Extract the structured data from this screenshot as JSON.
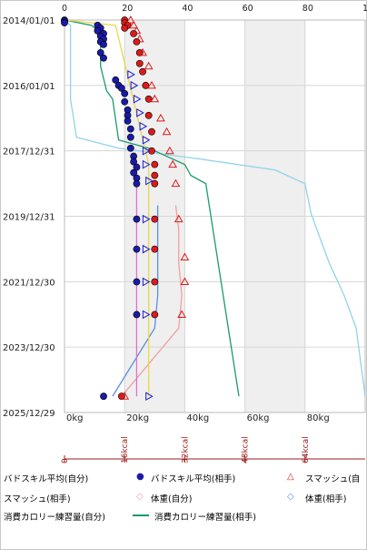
{
  "chart_data": {
    "type": "scatter",
    "grid": true,
    "y_axis": {
      "type": "date",
      "ticks": [
        "2014/01/01",
        "2016/01/01",
        "2017/12/31",
        "2019/12/31",
        "2021/12/30",
        "2023/12/30",
        "2025/12/29"
      ],
      "range": [
        "2014/01/01",
        "2025/12/29"
      ]
    },
    "x_axis_top": {
      "ticks": [
        "0",
        "20",
        "40",
        "60",
        "80",
        "10"
      ],
      "range": [
        0,
        100
      ]
    },
    "x_axis_kg": {
      "ticks": [
        "0kg",
        "20kg",
        "40kg",
        "60kg",
        "80kg"
      ],
      "range": [
        0,
        100
      ]
    },
    "x_axis_kcal": {
      "ticks": [
        "0",
        "16kcal",
        "32kcal",
        "48kcal",
        "64kcal"
      ]
    },
    "shaded_bands": [
      [
        20,
        40
      ],
      [
        60,
        80
      ]
    ],
    "series": [
      {
        "name": "バドスキル平均(自分)",
        "color": "#1a1aa8",
        "marker": "circle",
        "points": [
          [
            "2014/01/01",
            0
          ],
          [
            "2014/01/15",
            0
          ],
          [
            "2014/02/01",
            0
          ],
          [
            "2014/03/01",
            11
          ],
          [
            "2014/04/01",
            12
          ],
          [
            "2014/05/01",
            11
          ],
          [
            "2014/06/01",
            13
          ],
          [
            "2014/07/01",
            12
          ],
          [
            "2014/08/01",
            13
          ],
          [
            "2014/09/01",
            12
          ],
          [
            "2014/10/01",
            13
          ],
          [
            "2015/01/01",
            12
          ],
          [
            "2015/03/01",
            13
          ],
          [
            "2015/11/01",
            17
          ],
          [
            "2016/01/01",
            18
          ],
          [
            "2016/02/01",
            19
          ],
          [
            "2016/04/01",
            20
          ],
          [
            "2016/07/01",
            20
          ],
          [
            "2016/10/01",
            21
          ],
          [
            "2016/12/01",
            21
          ],
          [
            "2017/02/01",
            21
          ],
          [
            "2017/05/01",
            22
          ],
          [
            "2017/08/01",
            22
          ],
          [
            "2017/12/01",
            22
          ],
          [
            "2018/03/01",
            23
          ],
          [
            "2018/05/01",
            23
          ],
          [
            "2018/07/01",
            24
          ],
          [
            "2018/09/01",
            23
          ],
          [
            "2018/11/01",
            24
          ],
          [
            "2019/01/01",
            24
          ],
          [
            "2020/02/01",
            24
          ],
          [
            "2021/01/01",
            24
          ],
          [
            "2022/01/01",
            24
          ],
          [
            "2023/01/01",
            24
          ],
          [
            "2025/07/01",
            13
          ]
        ]
      },
      {
        "name": "バドスキル平均(相手)",
        "color": "#dd1a1a",
        "marker": "circle",
        "points": [
          [
            "2014/01/01",
            20
          ],
          [
            "2014/02/01",
            20
          ],
          [
            "2014/03/01",
            21
          ],
          [
            "2014/04/01",
            20
          ],
          [
            "2014/06/01",
            23
          ],
          [
            "2014/09/01",
            24
          ],
          [
            "2015/01/01",
            25
          ],
          [
            "2015/05/01",
            25
          ],
          [
            "2015/08/01",
            26
          ],
          [
            "2016/01/01",
            27
          ],
          [
            "2016/06/01",
            28
          ],
          [
            "2016/12/01",
            28
          ],
          [
            "2017/06/01",
            29
          ],
          [
            "2018/01/01",
            29
          ],
          [
            "2018/06/01",
            30
          ],
          [
            "2018/10/01",
            30
          ],
          [
            "2019/01/01",
            30
          ],
          [
            "2020/02/01",
            30
          ],
          [
            "2021/01/01",
            30
          ],
          [
            "2022/01/01",
            30
          ],
          [
            "2023/01/01",
            30
          ],
          [
            "2025/07/01",
            19
          ]
        ]
      },
      {
        "name": "スマッシュ(自分)",
        "color": "#dd1a1a",
        "marker": "triangle",
        "points": [
          [
            "2014/01/01",
            22
          ],
          [
            "2014/03/01",
            23
          ],
          [
            "2014/05/01",
            24
          ],
          [
            "2014/08/01",
            25
          ],
          [
            "2015/01/01",
            26
          ],
          [
            "2015/06/01",
            28
          ],
          [
            "2016/01/01",
            29
          ],
          [
            "2016/06/01",
            30
          ],
          [
            "2017/01/01",
            32
          ],
          [
            "2017/06/01",
            34
          ],
          [
            "2018/01/01",
            35
          ],
          [
            "2018/06/01",
            36
          ],
          [
            "2019/01/01",
            37
          ],
          [
            "2020/02/01",
            38
          ],
          [
            "2021/04/01",
            40
          ],
          [
            "2022/01/01",
            40
          ],
          [
            "2023/01/01",
            39
          ],
          [
            "2025/07/01",
            20
          ]
        ]
      },
      {
        "name": "スマッシュ(相手)",
        "color": "#1a1ad8",
        "marker": "triangle-right",
        "points": [
          [
            "2015/09/01",
            22
          ],
          [
            "2016/01/01",
            23
          ],
          [
            "2016/06/01",
            24
          ],
          [
            "2016/11/01",
            25
          ],
          [
            "2017/04/01",
            26
          ],
          [
            "2017/09/01",
            27
          ],
          [
            "2018/01/01",
            27
          ],
          [
            "2018/06/01",
            27
          ],
          [
            "2018/12/01",
            28
          ],
          [
            "2020/02/01",
            27
          ],
          [
            "2021/01/01",
            27
          ],
          [
            "2022/01/01",
            27
          ],
          [
            "2023/01/01",
            27
          ],
          [
            "2025/07/01",
            28
          ]
        ]
      },
      {
        "name": "体重(自分)",
        "color": "#f0a0a0",
        "marker": "diamond",
        "line": [
          [
            "2019/09/01",
            37
          ],
          [
            "2020/06/01",
            38
          ],
          [
            "2021/06/01",
            38
          ],
          [
            "2022/06/01",
            39
          ],
          [
            "2023/06/01",
            38
          ],
          [
            "2025/07/01",
            19
          ]
        ]
      },
      {
        "name": "体重(相手)",
        "color": "#5b8ee0",
        "marker": "diamond",
        "line": [
          [
            "2019/09/01",
            31
          ],
          [
            "2020/06/01",
            31
          ],
          [
            "2021/06/01",
            31
          ],
          [
            "2022/06/01",
            31
          ],
          [
            "2023/06/01",
            30
          ],
          [
            "2025/07/01",
            16
          ]
        ]
      },
      {
        "name": "消費カロリー練習量(自分)",
        "color": "#8fd3ec",
        "line": [
          [
            "2014/01/01",
            0
          ],
          [
            "2014/03/01",
            2
          ],
          [
            "2016/06/01",
            2
          ],
          [
            "2017/08/01",
            4
          ],
          [
            "2017/12/01",
            18
          ],
          [
            "2018/04/01",
            45
          ],
          [
            "2018/08/01",
            70
          ],
          [
            "2019/01/01",
            80
          ],
          [
            "2019/12/01",
            82
          ],
          [
            "2020/06/01",
            84
          ],
          [
            "2021/06/01",
            88
          ],
          [
            "2022/06/01",
            93
          ],
          [
            "2023/06/01",
            97
          ],
          [
            "2025/07/01",
            100
          ]
        ]
      },
      {
        "name": "消費カロリー練習量(相手)",
        "color": "#1c9a6c",
        "line": [
          [
            "2014/01/01",
            0
          ],
          [
            "2014/03/01",
            9
          ],
          [
            "2014/06/01",
            12
          ],
          [
            "2015/06/01",
            12
          ],
          [
            "2016/03/01",
            14
          ],
          [
            "2016/06/01",
            16
          ],
          [
            "2017/09/01",
            18
          ],
          [
            "2017/12/01",
            28
          ],
          [
            "2018/06/01",
            40
          ],
          [
            "2018/10/01",
            42
          ],
          [
            "2019/01/01",
            47
          ],
          [
            "2025/07/01",
            58
          ]
        ]
      },
      {
        "name": "line-yellow",
        "color": "#e8d84a",
        "line": [
          [
            "2014/01/01",
            0
          ],
          [
            "2014/03/01",
            17
          ],
          [
            "2018/06/01",
            28
          ],
          [
            "2025/07/01",
            28
          ]
        ]
      },
      {
        "name": "line-magenta",
        "color": "#e070d0",
        "line": [
          [
            "2018/06/01",
            24
          ],
          [
            "2025/07/01",
            24
          ]
        ]
      }
    ]
  },
  "legend": {
    "row1": [
      "バドスキル平均(自分)",
      "バドスキル平均(相手)",
      "スマッシュ(自"
    ],
    "row2": [
      "スマッシュ(相手)",
      "体重(自分)",
      "体重(相手)"
    ],
    "row3": [
      "消費カロリー練習量(自分)",
      "消費カロリー練習量(相手)"
    ]
  }
}
